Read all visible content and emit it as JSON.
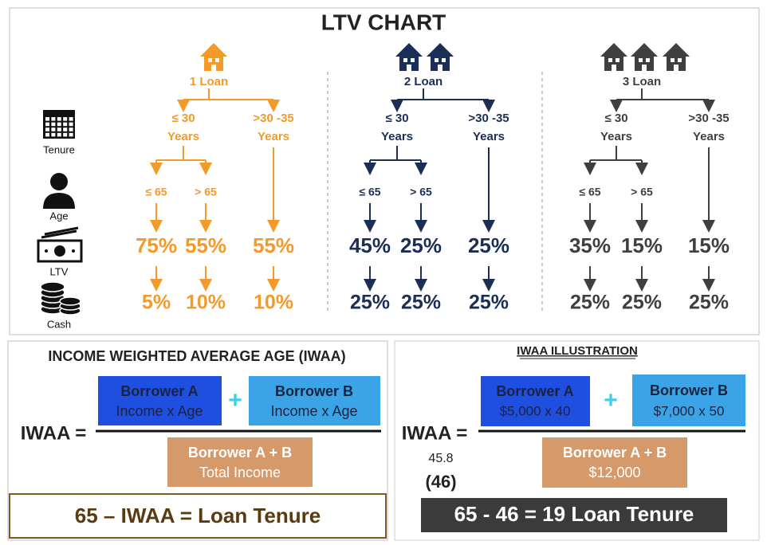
{
  "title": "LTV CHART",
  "side_labels": [
    "Tenure",
    "Age",
    "LTV",
    "Cash"
  ],
  "groups": [
    {
      "label": "1 Loan",
      "color": "#f39a2b",
      "tenures": [
        {
          "line1": "≤ 30",
          "line2": "Years"
        },
        {
          "line1": ">30 -35",
          "line2": "Years"
        }
      ],
      "ages": [
        "≤ 65",
        "> 65"
      ],
      "ltv": [
        "75%",
        "55%",
        "55%"
      ],
      "cash": [
        "5%",
        "10%",
        "10%"
      ]
    },
    {
      "label": "2 Loan",
      "color": "#1b2e55",
      "tenures": [
        {
          "line1": "≤ 30",
          "line2": "Years"
        },
        {
          "line1": ">30 -35",
          "line2": "Years"
        }
      ],
      "ages": [
        "≤ 65",
        "> 65"
      ],
      "ltv": [
        "45%",
        "25%",
        "25%"
      ],
      "cash": [
        "25%",
        "25%",
        "25%"
      ]
    },
    {
      "label": "3 Loan",
      "color": "#3f3f3f",
      "tenures": [
        {
          "line1": "≤ 30",
          "line2": "Years"
        },
        {
          "line1": ">30 -35",
          "line2": "Years"
        }
      ],
      "ages": [
        "≤ 65",
        "> 65"
      ],
      "ltv": [
        "35%",
        "15%",
        "15%"
      ],
      "cash": [
        "25%",
        "25%",
        "25%"
      ]
    }
  ],
  "iwaa": {
    "title": "INCOME WEIGHTED AVERAGE AGE (IWAA)",
    "lhs": "IWAA =",
    "borrower_a": {
      "name": "Borrower A",
      "detail": "Income x Age"
    },
    "plus": "+",
    "borrower_b": {
      "name": "Borrower B",
      "detail": "Income x Age"
    },
    "denominator": {
      "name": "Borrower A + B",
      "detail": "Total Income"
    },
    "formula": "65 – IWAA = Loan Tenure"
  },
  "illustration": {
    "title": "IWAA ILLUSTRATION",
    "lhs": "IWAA =",
    "result": "45.8",
    "rounded": "(46)",
    "borrower_a": {
      "name": "Borrower A",
      "detail": "$5,000 x 40"
    },
    "plus": "+",
    "borrower_b": {
      "name": "Borrower B",
      "detail": "$7,000 x 50"
    },
    "denominator": {
      "name": "Borrower A + B",
      "detail": "$12,000"
    },
    "formula": "65 - 46 = 19 Loan Tenure"
  }
}
